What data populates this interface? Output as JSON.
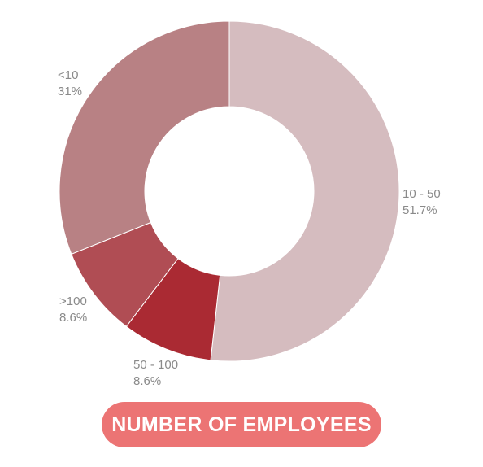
{
  "chart_data": {
    "type": "pie",
    "donut": true,
    "title": "NUMBER OF EMPLOYEES",
    "slices": [
      {
        "label": "10 - 50",
        "value": 51.7,
        "value_label": "51.7%",
        "color": "#d5bcbf"
      },
      {
        "label": "50 - 100",
        "value": 8.6,
        "value_label": "8.6%",
        "color": "#aa2a33"
      },
      {
        "label": ">100",
        "value": 8.6,
        "value_label": "8.6%",
        "color": "#b04d54"
      },
      {
        "label": "<10",
        "value": 31,
        "value_label": "31%",
        "color": "#b88184"
      }
    ],
    "start": "top",
    "direction": "clockwise",
    "title_color": "#ec7474"
  }
}
